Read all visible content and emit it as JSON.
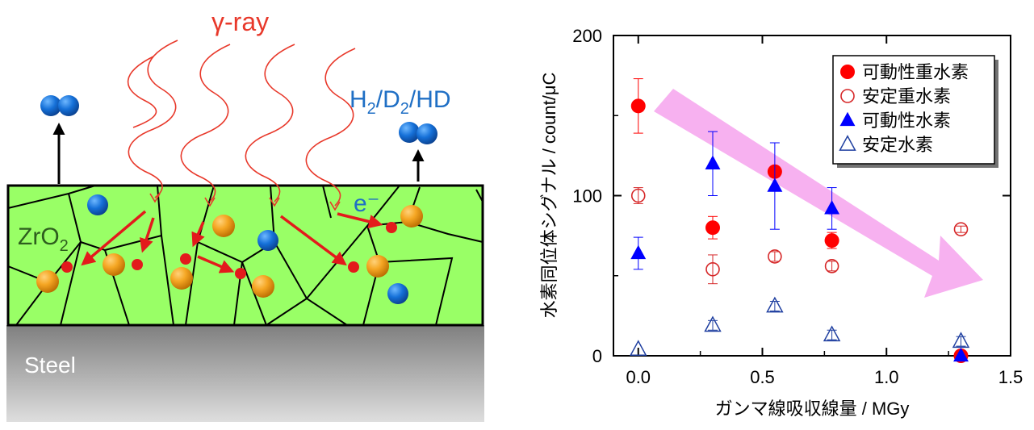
{
  "diagram": {
    "gamma_label": "γ-ray",
    "gas_label": "H2/D2/HD",
    "electron_label": "e⁻",
    "oxide_label": "ZrO2",
    "substrate_label": "Steel",
    "colors": {
      "oxide": "#99ff66",
      "wave": "#e8382a",
      "arrow": "#e31a1c",
      "gas_text": "#1f6fc5",
      "steel_top": "#808080",
      "steel_bottom": "#dcdcdc"
    }
  },
  "chart_data": {
    "type": "scatter",
    "xlabel": "ガンマ線吸収線量 / MGy",
    "ylabel": "水素同位体シグナル / count/μC",
    "xlim": [
      -0.1,
      1.5
    ],
    "ylim": [
      0,
      200
    ],
    "x_ticks": [
      0.0,
      0.5,
      1.0,
      1.5
    ],
    "x_tick_labels": [
      "0.0",
      "0.5",
      "1.0",
      "1.5"
    ],
    "y_ticks": [
      0,
      100,
      200
    ],
    "y_tick_labels": [
      "0",
      "100",
      "200"
    ],
    "legend_position": "top-right",
    "series": [
      {
        "name": "可動性重水素",
        "marker": "circle-filled",
        "color": "#ff0000",
        "points": [
          {
            "x": 0.0,
            "y": 156,
            "err": 17
          },
          {
            "x": 0.3,
            "y": 80,
            "err": 7
          },
          {
            "x": 0.55,
            "y": 115,
            "err": 0
          },
          {
            "x": 0.78,
            "y": 72,
            "err": 5
          },
          {
            "x": 1.3,
            "y": 0,
            "err": 0
          }
        ]
      },
      {
        "name": "安定重水素",
        "marker": "circle-open",
        "color": "#d62728",
        "points": [
          {
            "x": 0.0,
            "y": 100,
            "err": 5
          },
          {
            "x": 0.3,
            "y": 54,
            "err": 9
          },
          {
            "x": 0.55,
            "y": 62,
            "err": 3
          },
          {
            "x": 0.78,
            "y": 56,
            "err": 3
          },
          {
            "x": 1.3,
            "y": 79,
            "err": 2
          }
        ]
      },
      {
        "name": "可動性水素",
        "marker": "triangle-filled",
        "color": "#0000ff",
        "points": [
          {
            "x": 0.0,
            "y": 64,
            "err": 10
          },
          {
            "x": 0.3,
            "y": 120,
            "err": 20
          },
          {
            "x": 0.55,
            "y": 106,
            "err": 27
          },
          {
            "x": 0.78,
            "y": 92,
            "err": 13
          },
          {
            "x": 1.3,
            "y": 0,
            "err": 0
          }
        ]
      },
      {
        "name": "安定水素",
        "marker": "triangle-open",
        "color": "#1f3fa0",
        "points": [
          {
            "x": 0.0,
            "y": 4,
            "err": 0
          },
          {
            "x": 0.3,
            "y": 19,
            "err": 3
          },
          {
            "x": 0.55,
            "y": 31,
            "err": 3
          },
          {
            "x": 0.78,
            "y": 13,
            "err": 3
          },
          {
            "x": 1.3,
            "y": 9,
            "err": 3
          }
        ]
      }
    ]
  }
}
